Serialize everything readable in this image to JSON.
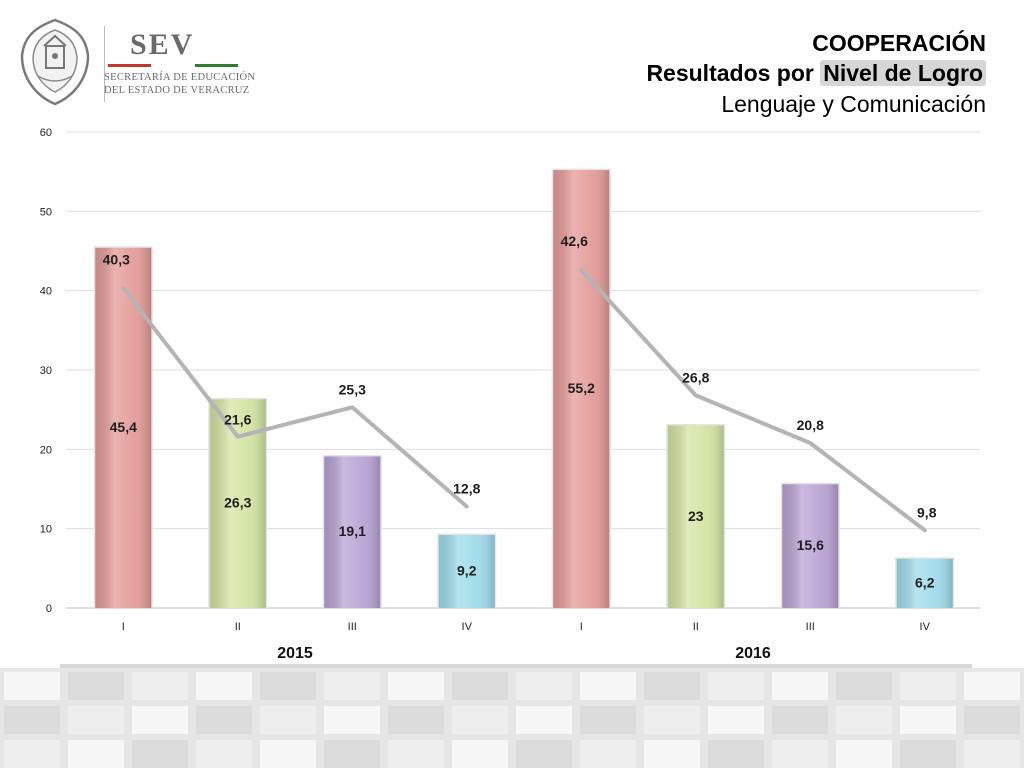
{
  "logo": {
    "name": "SEV",
    "line1": "SECRETARÍA DE EDUCACIÓN",
    "line2": "DEL ESTADO DE VERACRUZ",
    "stripe_colors": [
      "#c0392b",
      "#ffffff",
      "#2e7d32"
    ]
  },
  "header": {
    "title_line1": "COOPERACIÓN",
    "title_line2_prefix": "Resultados por ",
    "title_line2_highlight": "Nivel de Logro",
    "title_line3": "Lenguaje y Comunicación"
  },
  "chart_data": {
    "type": "bar",
    "ylim": [
      0,
      60
    ],
    "yticks": [
      0,
      10,
      20,
      30,
      40,
      50,
      60
    ],
    "grid": true,
    "groups": [
      {
        "name": "2015",
        "categories": [
          "I",
          "II",
          "III",
          "IV"
        ],
        "bar_values": [
          45.4,
          26.3,
          19.1,
          9.2
        ],
        "bar_labels": [
          "45,4",
          "26,3",
          "19,1",
          "9,2"
        ],
        "line_values": [
          40.3,
          21.6,
          25.3,
          12.8
        ],
        "line_labels": [
          "40,3",
          "21,6",
          "25,3",
          "12,8"
        ]
      },
      {
        "name": "2016",
        "categories": [
          "I",
          "II",
          "III",
          "IV"
        ],
        "bar_values": [
          55.2,
          23,
          15.6,
          6.2
        ],
        "bar_labels": [
          "55,2",
          "23",
          "15,6",
          "6,2"
        ],
        "line_values": [
          42.6,
          26.8,
          20.8,
          9.8
        ],
        "line_labels": [
          "42,6",
          "26,8",
          "20,8",
          "9,8"
        ]
      }
    ],
    "bar_colors": [
      "#e39b98",
      "#d3e4a3",
      "#b8a3d3",
      "#9fdbea"
    ],
    "line_color": "#b4b4b4"
  }
}
